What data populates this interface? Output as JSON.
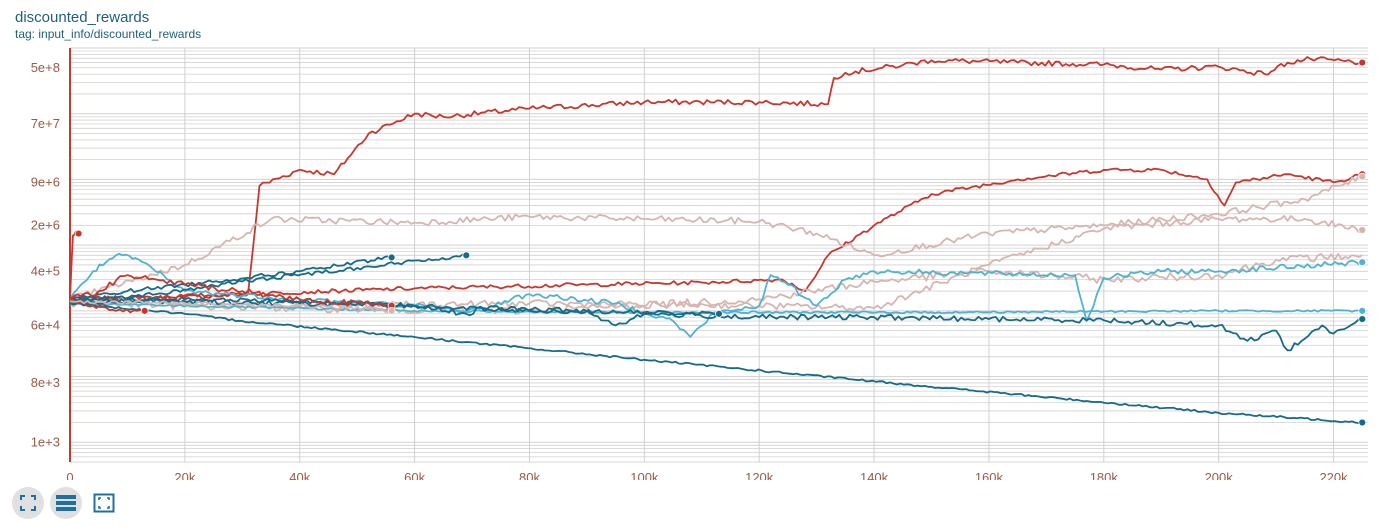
{
  "header": {
    "title": "discounted_rewards",
    "tag": "tag: input_info/discounted_rewards"
  },
  "toolbar": {
    "buttons": [
      {
        "name": "fullscreen-icon",
        "active": true
      },
      {
        "name": "data-table-icon",
        "active": true
      },
      {
        "name": "fit-domain-icon",
        "active": false
      }
    ]
  },
  "colors": {
    "dark_teal": "#166b89",
    "light_blue": "#4eb3d3",
    "red": "#c8372d",
    "light_pink": "#d6b5b0",
    "grid": "#d0d0d0",
    "axis": "#9a5a48"
  },
  "chart_data": {
    "type": "line",
    "title": "discounted_rewards",
    "xlabel": "",
    "ylabel": "",
    "y_scale": "log",
    "xlim": [
      0,
      226000
    ],
    "y_ticks": [
      {
        "label": "5e+8",
        "value": 500000000
      },
      {
        "label": "7e+7",
        "value": 70000000
      },
      {
        "label": "9e+6",
        "value": 9000000
      },
      {
        "label": "2e+6",
        "value": 2000000
      },
      {
        "label": "4e+5",
        "value": 400000
      },
      {
        "label": "6e+4",
        "value": 60000
      },
      {
        "label": "8e+3",
        "value": 8000
      },
      {
        "label": "1e+3",
        "value": 1000
      }
    ],
    "x_ticks": [
      "0",
      "20k",
      "40k",
      "60k",
      "80k",
      "100k",
      "120k",
      "140k",
      "160k",
      "180k",
      "200k",
      "220k"
    ],
    "x_tick_values": [
      0,
      20000,
      40000,
      60000,
      80000,
      100000,
      120000,
      140000,
      160000,
      180000,
      200000,
      220000
    ],
    "grid": true,
    "series": [
      {
        "color": "#c8372d",
        "end_marker": true,
        "noise": 0.08,
        "x": [
          0,
          20000,
          31000,
          33000,
          40000,
          46000,
          52000,
          60000,
          65000,
          80000,
          100000,
          120000,
          132000,
          133000,
          135000,
          145000,
          150000,
          165000,
          180000,
          190000,
          200000,
          208000,
          212000,
          216000,
          225000
        ],
        "y": [
          150000,
          160000,
          180000,
          8000000,
          14000000,
          12000000,
          50000000,
          100000000,
          90000000,
          120000000,
          150000000,
          150000000,
          140000000,
          350000000,
          420000000,
          550000000,
          650000000,
          600000000,
          560000000,
          470000000,
          520000000,
          400000000,
          600000000,
          680000000,
          600000000
        ]
      },
      {
        "color": "#c8372d",
        "end_marker": true,
        "noise": 0.06,
        "x": [
          0,
          30000,
          60000,
          90000,
          110000,
          124000,
          128000,
          132000,
          140000,
          150000,
          165000,
          180000,
          190000,
          198000,
          201000,
          203000,
          212000,
          220000,
          225000
        ],
        "y": [
          150000,
          180000,
          220000,
          250000,
          270000,
          300000,
          200000,
          700000,
          2000000,
          6000000,
          10000000,
          14000000,
          14000000,
          10000000,
          4000000,
          9000000,
          12000000,
          9000000,
          12000000
        ]
      },
      {
        "color": "#d6b5b0",
        "end_marker": true,
        "noise": 0.1,
        "x": [
          0,
          20000,
          35000,
          60000,
          80000,
          100000,
          120000,
          130000,
          140000,
          160000,
          180000,
          200000,
          215000,
          225000
        ],
        "y": [
          150000,
          500000,
          2500000,
          2200000,
          2700000,
          2500000,
          2300000,
          1500000,
          700000,
          1500000,
          2000000,
          3000000,
          5000000,
          11000000
        ]
      },
      {
        "color": "#d6b5b0",
        "end_marker": true,
        "noise": 0.1,
        "x": [
          0,
          40000,
          80000,
          120000,
          140000,
          160000,
          180000,
          200000,
          215000,
          225000
        ],
        "y": [
          150000,
          120000,
          130000,
          120000,
          110000,
          500000,
          1800000,
          2500000,
          2500000,
          1700000
        ]
      },
      {
        "color": "#d6b5b0",
        "end_marker": false,
        "noise": 0.12,
        "x": [
          0,
          40000,
          80000,
          120000,
          140000,
          160000,
          180000,
          200000,
          210000,
          225000
        ],
        "y": [
          130000,
          110000,
          100000,
          150000,
          280000,
          400000,
          300000,
          350000,
          600000,
          700000
        ]
      },
      {
        "color": "#4eb3d3",
        "end_marker": true,
        "noise": 0.08,
        "x": [
          0,
          4000,
          8000,
          12000,
          20000,
          40000,
          60000,
          69000,
          72000,
          80000,
          95000,
          105000,
          108000,
          112000,
          120000,
          122000,
          125000,
          130000,
          135000,
          140000,
          175000,
          177000,
          180000,
          190000,
          200000,
          225000
        ],
        "y": [
          150000,
          400000,
          700000,
          600000,
          200000,
          150000,
          120000,
          100000,
          110000,
          180000,
          130000,
          70000,
          40000,
          90000,
          120000,
          350000,
          250000,
          120000,
          300000,
          400000,
          350000,
          70000,
          320000,
          400000,
          400000,
          550000
        ]
      },
      {
        "color": "#4eb3d3",
        "end_marker": true,
        "noise": 0.03,
        "x": [
          0,
          60000,
          100000,
          150000,
          200000,
          225000
        ],
        "y": [
          130000,
          100000,
          95000,
          95000,
          100000,
          100000
        ]
      },
      {
        "color": "#166b89",
        "end_marker": true,
        "noise": 0.03,
        "x": [
          0,
          20000,
          30000,
          60000,
          100000,
          150000,
          200000,
          225000
        ],
        "y": [
          130000,
          90000,
          70000,
          40000,
          18000,
          7000,
          2800,
          2000
        ]
      },
      {
        "color": "#166b89",
        "end_marker": true,
        "noise": 0.08,
        "x": [
          0,
          40000,
          60000,
          69000,
          72000,
          90000,
          95000,
          100000,
          120000,
          140000,
          160000,
          180000,
          200000,
          205000,
          210000,
          212000,
          218000,
          220000,
          225000
        ],
        "y": [
          150000,
          130000,
          120000,
          90000,
          110000,
          100000,
          60000,
          90000,
          80000,
          80000,
          75000,
          72000,
          60000,
          35000,
          50000,
          25000,
          60000,
          45000,
          75000
        ]
      },
      {
        "color": "#166b89",
        "end_marker": true,
        "noise": 0.06,
        "x": [
          0,
          10000,
          20000,
          40000,
          56000
        ],
        "y": [
          150000,
          200000,
          250000,
          400000,
          650000
        ]
      },
      {
        "color": "#166b89",
        "end_marker": true,
        "noise": 0.06,
        "x": [
          0,
          15000,
          30000,
          50000,
          69000
        ],
        "y": [
          140000,
          180000,
          280000,
          450000,
          700000
        ]
      },
      {
        "color": "#166b89",
        "end_marker": true,
        "noise": 0.06,
        "x": [
          0,
          20000,
          40000,
          60000,
          80000,
          100000,
          113000
        ],
        "y": [
          130000,
          150000,
          140000,
          120000,
          100000,
          95000,
          90000
        ]
      },
      {
        "color": "#c8372d",
        "end_marker": true,
        "noise": 0.06,
        "x": [
          0,
          500,
          1000,
          1500
        ],
        "y": [
          150000,
          1400000,
          1600000,
          1500000
        ]
      },
      {
        "color": "#c8372d",
        "end_marker": true,
        "noise": 0.1,
        "x": [
          0,
          5000,
          10000,
          15000,
          20000,
          30000,
          40000,
          56000
        ],
        "y": [
          150000,
          200000,
          350000,
          300000,
          250000,
          200000,
          150000,
          120000
        ]
      },
      {
        "color": "#c8372d",
        "end_marker": true,
        "noise": 0.06,
        "x": [
          0,
          4000,
          8000,
          13000
        ],
        "y": [
          150000,
          120000,
          100000,
          100000
        ]
      },
      {
        "color": "#d6b5b0",
        "end_marker": true,
        "noise": 0.06,
        "x": [
          0,
          20000,
          40000,
          56000
        ],
        "y": [
          140000,
          130000,
          120000,
          100000
        ]
      }
    ]
  }
}
